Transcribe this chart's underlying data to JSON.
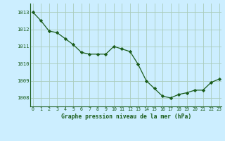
{
  "x": [
    0,
    1,
    2,
    3,
    4,
    5,
    6,
    7,
    8,
    9,
    10,
    11,
    12,
    13,
    14,
    15,
    16,
    17,
    18,
    19,
    20,
    21,
    22,
    23
  ],
  "y": [
    1013.0,
    1012.5,
    1011.9,
    1011.8,
    1011.45,
    1011.1,
    1010.65,
    1010.55,
    1010.55,
    1010.55,
    1011.0,
    1010.85,
    1010.7,
    1009.95,
    1009.0,
    1008.55,
    1008.1,
    1008.0,
    1008.2,
    1008.3,
    1008.45,
    1008.45,
    1008.9,
    1009.1
  ],
  "line_color": "#1a5c1a",
  "marker_color": "#1a5c1a",
  "bg_color": "#cceeff",
  "grid_color": "#aaccbb",
  "xlabel": "Graphe pression niveau de la mer (hPa)",
  "xlabel_color": "#1a5c1a",
  "tick_color": "#1a5c1a",
  "ylim": [
    1007.5,
    1013.5
  ],
  "yticks": [
    1008,
    1009,
    1010,
    1011,
    1012,
    1013
  ],
  "xticks": [
    0,
    1,
    2,
    3,
    4,
    5,
    6,
    7,
    8,
    9,
    10,
    11,
    12,
    13,
    14,
    15,
    16,
    17,
    18,
    19,
    20,
    21,
    22,
    23
  ],
  "xlim": [
    -0.3,
    23.3
  ]
}
